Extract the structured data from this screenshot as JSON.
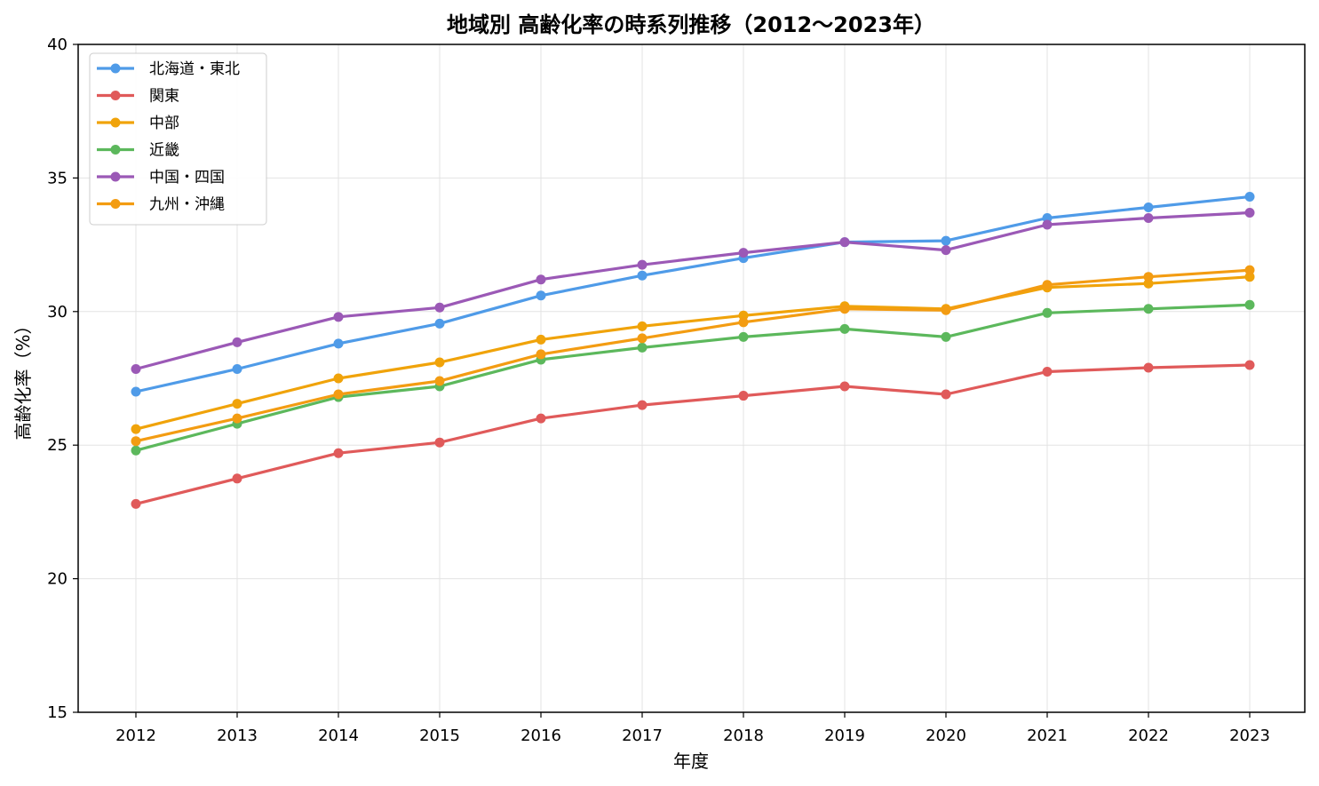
{
  "chart_data": {
    "type": "line",
    "title": "地域別 高齢化率の時系列推移（2012〜2023年）",
    "xlabel": "年度",
    "ylabel": "高齢化率（%）",
    "ylim": [
      15,
      40
    ],
    "yticks": [
      15,
      20,
      25,
      30,
      35,
      40
    ],
    "grid": true,
    "legend_position": "top-left",
    "x": [
      "2012",
      "2013",
      "2014",
      "2015",
      "2016",
      "2017",
      "2018",
      "2019",
      "2020",
      "2021",
      "2022",
      "2023"
    ],
    "series": [
      {
        "name": "北海道・東北",
        "color": "#4f9be8",
        "values": [
          27.0,
          27.85,
          28.8,
          29.55,
          30.6,
          31.35,
          32.0,
          32.6,
          32.65,
          33.5,
          33.9,
          34.3
        ]
      },
      {
        "name": "関東",
        "color": "#e05a5a",
        "values": [
          22.8,
          23.75,
          24.7,
          25.1,
          26.0,
          26.5,
          26.85,
          27.2,
          26.9,
          27.75,
          27.9,
          28.0
        ]
      },
      {
        "name": "中部",
        "color": "#f0a30a",
        "values": [
          25.6,
          26.55,
          27.5,
          28.1,
          28.95,
          29.45,
          29.85,
          30.2,
          30.1,
          30.9,
          31.05,
          31.3
        ]
      },
      {
        "name": "近畿",
        "color": "#5cb85c",
        "values": [
          24.8,
          25.8,
          26.8,
          27.2,
          28.2,
          28.65,
          29.05,
          29.35,
          29.05,
          29.95,
          30.1,
          30.25
        ]
      },
      {
        "name": "中国・四国",
        "color": "#9b59b6",
        "values": [
          27.85,
          28.85,
          29.8,
          30.15,
          31.2,
          31.75,
          32.2,
          32.6,
          32.3,
          33.25,
          33.5,
          33.7
        ]
      },
      {
        "name": "九州・沖縄",
        "color": "#f39c12",
        "values": [
          25.15,
          26.0,
          26.9,
          27.4,
          28.4,
          29.0,
          29.6,
          30.1,
          30.05,
          31.0,
          31.3,
          31.55
        ]
      }
    ]
  }
}
